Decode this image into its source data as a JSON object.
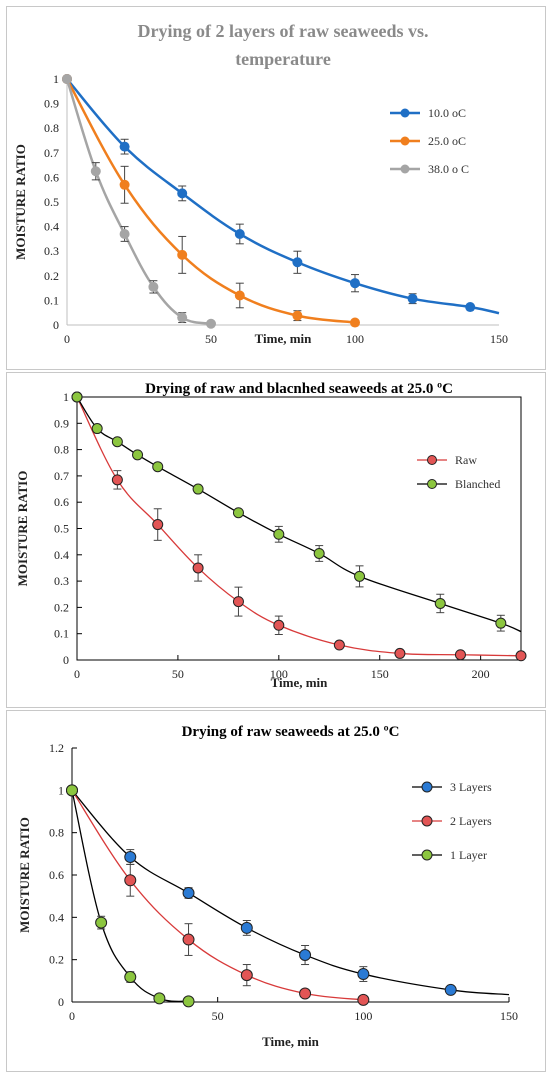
{
  "chart_data": [
    {
      "type": "line",
      "title_lines": [
        "Drying of 2 layers of raw seaweeds vs.",
        "temperature"
      ],
      "xlabel": "Time, min",
      "ylabel": "MOISTURE RATIO",
      "xlim": [
        0,
        150
      ],
      "ylim": [
        0,
        1
      ],
      "xticks": [
        0,
        50,
        100,
        150
      ],
      "yticks": [
        0,
        0.1,
        0.2,
        0.3,
        0.4,
        0.5,
        0.6,
        0.7,
        0.8,
        0.9,
        1
      ],
      "ytick_labels": [
        "0",
        "0.1",
        "0.2",
        "0.3",
        "0.4",
        "0.5",
        "0.6",
        "0.7",
        "0.8",
        "0.9",
        "1"
      ],
      "legend_position": "right",
      "grid": false,
      "series": [
        {
          "name": "10.0 oC",
          "color": "#1f6fc5",
          "x": [
            0,
            20,
            40,
            60,
            80,
            100,
            120,
            140,
            150
          ],
          "y": [
            1,
            0.725,
            0.535,
            0.37,
            0.255,
            0.17,
            0.107,
            0.073,
            0.048
          ],
          "err": [
            0,
            0.03,
            0.03,
            0.04,
            0.045,
            0.035,
            0.02,
            0,
            0
          ],
          "markers": [
            true,
            true,
            true,
            true,
            true,
            true,
            true,
            true,
            false
          ]
        },
        {
          "name": "25.0 oC",
          "color": "#f07f1e",
          "x": [
            0,
            20,
            40,
            60,
            80,
            100
          ],
          "y": [
            1,
            0.57,
            0.285,
            0.12,
            0.038,
            0.01
          ],
          "err": [
            0,
            0.075,
            0.075,
            0.05,
            0.02,
            0
          ],
          "markers": [
            true,
            true,
            true,
            true,
            true,
            true
          ]
        },
        {
          "name": "38.0 o C",
          "color": "#a5a5a5",
          "x": [
            0,
            10,
            20,
            30,
            40,
            50
          ],
          "y": [
            1,
            0.625,
            0.37,
            0.155,
            0.03,
            0.005
          ],
          "err": [
            0,
            0.035,
            0.03,
            0.025,
            0.02,
            0
          ],
          "markers": [
            true,
            true,
            true,
            true,
            true,
            true
          ]
        }
      ]
    },
    {
      "type": "line",
      "title_lines": [
        "Drying of raw and blacnhed seaweeds at 25.0 ºC"
      ],
      "xlabel": "Time, min",
      "ylabel": "MOISTURE RATIO",
      "xlim": [
        0,
        220
      ],
      "ylim": [
        0,
        1
      ],
      "xticks": [
        0,
        50,
        100,
        150,
        200
      ],
      "yticks": [
        0,
        0.1,
        0.2,
        0.3,
        0.4,
        0.5,
        0.6,
        0.7,
        0.8,
        0.9,
        1
      ],
      "ytick_labels": [
        "0",
        "0.1",
        "0.2",
        "0.3",
        "0.4",
        "0.5",
        "0.6",
        "0.7",
        "0.8",
        "0.9",
        "1"
      ],
      "legend_position": "right",
      "grid": false,
      "series": [
        {
          "name": "Raw",
          "color": "#d83a3a",
          "line_color": "#d83a3a",
          "marker_fill": "#e25555",
          "x": [
            0,
            20,
            40,
            60,
            80,
            100,
            130,
            160,
            190,
            220
          ],
          "y": [
            1,
            0.685,
            0.515,
            0.35,
            0.222,
            0.132,
            0.057,
            0.025,
            0.02,
            0.016
          ],
          "err": [
            0,
            0.035,
            0.06,
            0.05,
            0.055,
            0.035,
            0,
            0,
            0,
            0
          ],
          "markers": [
            true,
            true,
            true,
            true,
            true,
            true,
            true,
            true,
            true,
            true
          ]
        },
        {
          "name": "Blanched",
          "color": "#000000",
          "line_color": "#000000",
          "marker_fill": "#8cc63f",
          "x": [
            0,
            10,
            20,
            30,
            40,
            60,
            80,
            100,
            120,
            140,
            180,
            210,
            220
          ],
          "y": [
            1,
            0.88,
            0.83,
            0.78,
            0.735,
            0.65,
            0.56,
            0.478,
            0.405,
            0.318,
            0.215,
            0.14,
            0.108
          ],
          "err": [
            0,
            0,
            0,
            0,
            0,
            0,
            0,
            0.03,
            0.03,
            0.04,
            0.035,
            0.03,
            0
          ],
          "markers": [
            true,
            true,
            true,
            true,
            true,
            true,
            true,
            true,
            true,
            true,
            true,
            true,
            false
          ]
        }
      ]
    },
    {
      "type": "line",
      "title_lines": [
        "Drying of raw seaweeds at 25.0 ºC"
      ],
      "xlabel": "Time, min",
      "ylabel": "MOISTURE RATIO",
      "xlim": [
        0,
        150
      ],
      "ylim": [
        0,
        1.2
      ],
      "xticks": [
        0,
        50,
        100,
        150
      ],
      "yticks": [
        0,
        0.2,
        0.4,
        0.6,
        0.8,
        1,
        1.2
      ],
      "ytick_labels": [
        "0",
        "0.2",
        "0.4",
        "0.6",
        "0.8",
        "1",
        "1.2"
      ],
      "legend_position": "right",
      "grid": false,
      "series": [
        {
          "name": "3 Layers",
          "color": "#000000",
          "line_color": "#000000",
          "marker_fill": "#2a7ad4",
          "x": [
            0,
            20,
            40,
            60,
            80,
            100,
            130,
            150
          ],
          "y": [
            1,
            0.685,
            0.515,
            0.35,
            0.222,
            0.132,
            0.057,
            0.035
          ],
          "err": [
            0,
            0.035,
            0.025,
            0.035,
            0.045,
            0.035,
            0,
            0
          ],
          "markers": [
            true,
            true,
            true,
            true,
            true,
            true,
            true,
            false
          ]
        },
        {
          "name": "2 Layers",
          "color": "#d83a3a",
          "line_color": "#d83a3a",
          "marker_fill": "#e25555",
          "x": [
            0,
            20,
            40,
            60,
            80,
            100
          ],
          "y": [
            1,
            0.575,
            0.295,
            0.127,
            0.04,
            0.01
          ],
          "err": [
            0,
            0.075,
            0.075,
            0.05,
            0,
            0
          ],
          "markers": [
            true,
            true,
            true,
            true,
            true,
            true
          ]
        },
        {
          "name": "1 Layer",
          "color": "#000000",
          "line_color": "#000000",
          "marker_fill": "#8cc63f",
          "x": [
            0,
            10,
            20,
            30,
            40
          ],
          "y": [
            1,
            0.375,
            0.118,
            0.017,
            0.003
          ],
          "err": [
            0,
            0.03,
            0.025,
            0,
            0
          ],
          "markers": [
            true,
            true,
            true,
            true,
            true
          ]
        }
      ]
    }
  ]
}
